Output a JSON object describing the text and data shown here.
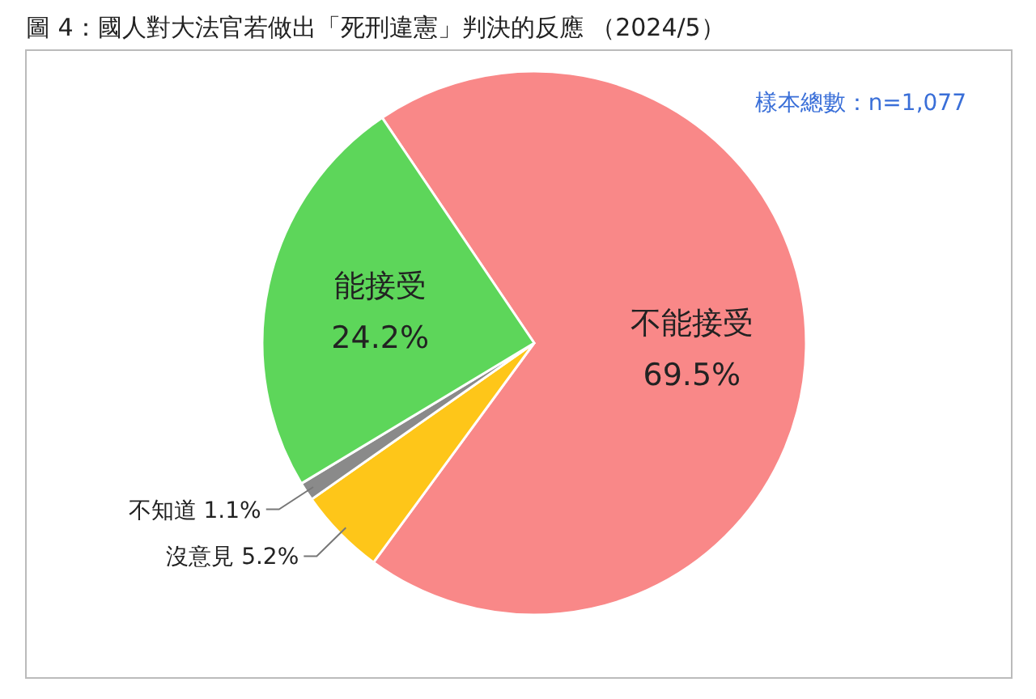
{
  "chart_data": {
    "type": "pie",
    "title": "圖 4：國人對大法官若做出「死刑違憲」判決的反應 （2024/5）",
    "annotations": [
      "樣本總數：n=1,077"
    ],
    "categories": [
      "不能接受",
      "沒意見",
      "不知道",
      "能接受"
    ],
    "values": [
      69.5,
      5.2,
      1.1,
      24.2
    ],
    "value_labels": [
      "69.5%",
      "5.2%",
      "1.1%",
      "24.2%"
    ],
    "colors": [
      "#f98888",
      "#fec619",
      "#8a8a8a",
      "#5dd65a"
    ]
  }
}
